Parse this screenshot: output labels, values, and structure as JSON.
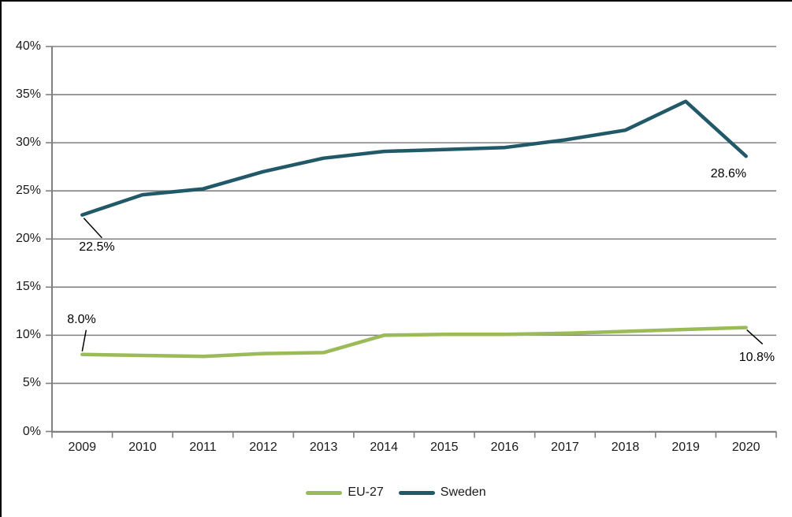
{
  "chart_data": {
    "type": "line",
    "title": "",
    "xlabel": "",
    "ylabel": "",
    "categories": [
      "2009",
      "2010",
      "2011",
      "2012",
      "2013",
      "2014",
      "2015",
      "2016",
      "2017",
      "2018",
      "2019",
      "2020"
    ],
    "series": [
      {
        "name": "EU-27",
        "color": "#9BBB59",
        "values": [
          8.0,
          7.9,
          7.8,
          8.1,
          8.2,
          10.0,
          10.1,
          10.1,
          10.2,
          10.4,
          10.6,
          10.8
        ]
      },
      {
        "name": "Sweden",
        "color": "#215968",
        "values": [
          22.5,
          24.6,
          25.2,
          27.0,
          28.4,
          29.1,
          29.3,
          29.5,
          30.3,
          31.3,
          34.3,
          28.6
        ]
      }
    ],
    "ylim": [
      0,
      40
    ],
    "ytick_step": 5,
    "ytick_labels": [
      "0%",
      "5%",
      "10%",
      "15%",
      "20%",
      "25%",
      "30%",
      "35%",
      "40%"
    ],
    "grid": "horizontal",
    "legend_position": "bottom",
    "annotations": [
      {
        "series": "Sweden",
        "point": "2009",
        "text": "22.5%",
        "leader": true
      },
      {
        "series": "Sweden",
        "point": "2020",
        "text": "28.6%",
        "leader": false
      },
      {
        "series": "EU-27",
        "point": "2009",
        "text": "8.0%",
        "leader": true
      },
      {
        "series": "EU-27",
        "point": "2020",
        "text": "10.8%",
        "leader": true
      }
    ],
    "axis_color": "#808080",
    "gridline_color": "#808080",
    "text_color": "#1a1a1a",
    "annotation_color": "#000000",
    "background": "#FFFFFF",
    "border_color": "#000000"
  },
  "legend": {
    "items": [
      {
        "label": "EU-27"
      },
      {
        "label": "Sweden"
      }
    ]
  }
}
